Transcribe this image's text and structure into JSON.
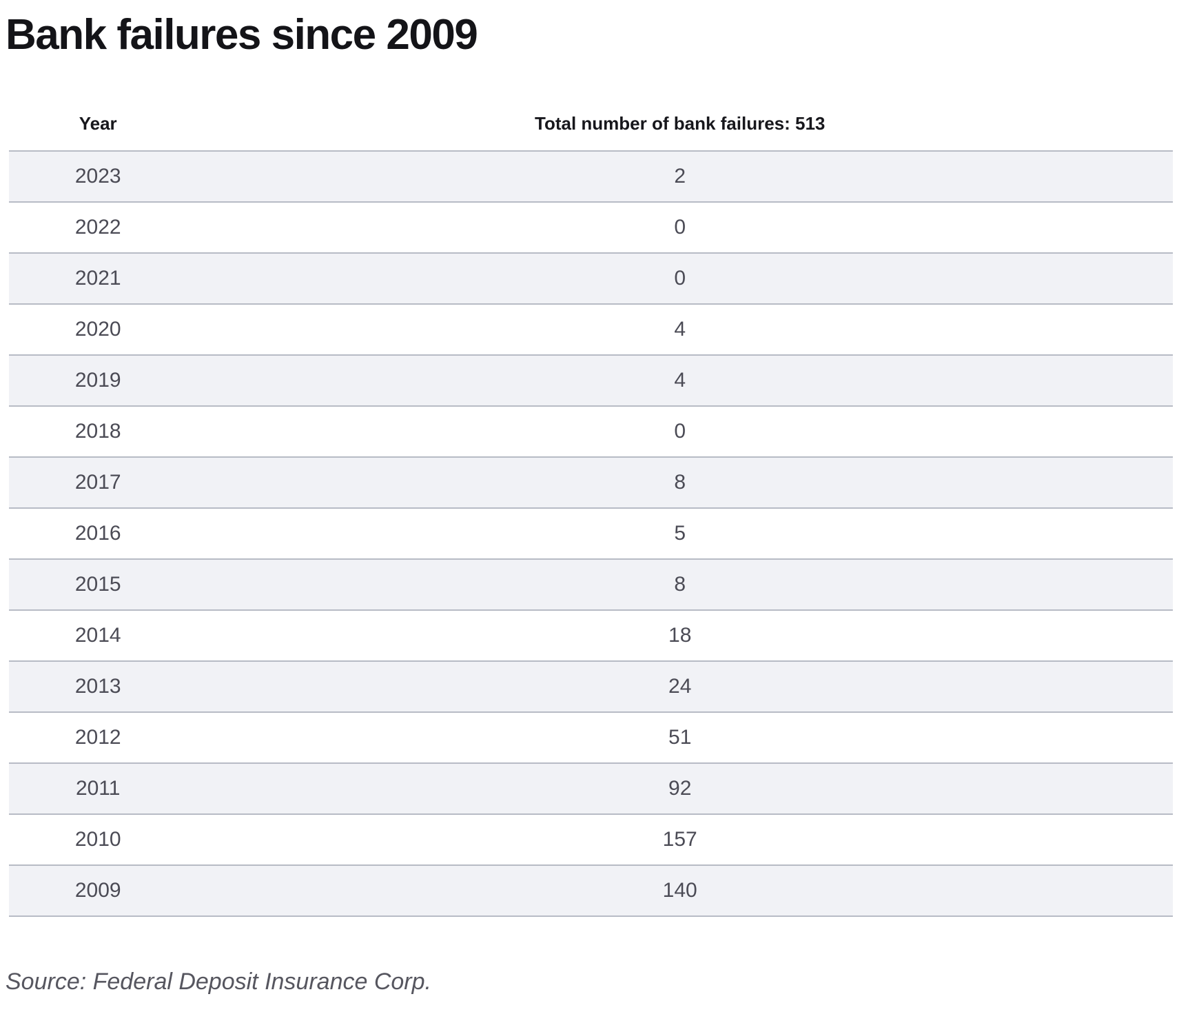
{
  "title": "Bank failures since 2009",
  "table": {
    "columns": {
      "year_header": "Year",
      "value_header": "Total number of bank failures: 513"
    },
    "rows": [
      {
        "year": "2023",
        "failures": "2"
      },
      {
        "year": "2022",
        "failures": "0"
      },
      {
        "year": "2021",
        "failures": "0"
      },
      {
        "year": "2020",
        "failures": "4"
      },
      {
        "year": "2019",
        "failures": "4"
      },
      {
        "year": "2018",
        "failures": "0"
      },
      {
        "year": "2017",
        "failures": "8"
      },
      {
        "year": "2016",
        "failures": "5"
      },
      {
        "year": "2015",
        "failures": "8"
      },
      {
        "year": "2014",
        "failures": "18"
      },
      {
        "year": "2013",
        "failures": "24"
      },
      {
        "year": "2012",
        "failures": "51"
      },
      {
        "year": "2011",
        "failures": "92"
      },
      {
        "year": "2010",
        "failures": "157"
      },
      {
        "year": "2009",
        "failures": "140"
      }
    ]
  },
  "source": "Source: Federal Deposit Insurance Corp.",
  "chart_data": {
    "type": "table",
    "title": "Bank failures since 2009",
    "columns": [
      "Year",
      "Total number of bank failures"
    ],
    "categories": [
      "2023",
      "2022",
      "2021",
      "2020",
      "2019",
      "2018",
      "2017",
      "2016",
      "2015",
      "2014",
      "2013",
      "2012",
      "2011",
      "2010",
      "2009"
    ],
    "values": [
      2,
      0,
      0,
      4,
      4,
      0,
      8,
      5,
      8,
      18,
      24,
      51,
      92,
      157,
      140
    ],
    "total_bank_failures": 513,
    "source": "Source: Federal Deposit Insurance Corp.",
    "layout_hints": {
      "striped_rows": true,
      "stripe_on": "odd",
      "value_alignment": "center",
      "year_alignment": "center"
    }
  },
  "colors": {
    "title_text": "#141418",
    "header_text": "#17171c",
    "body_text": "#4b4b55",
    "source_text": "#56565f",
    "stripe_bg": "#f1f2f6",
    "row_border": "#b7bbc5",
    "page_bg": "#ffffff"
  }
}
